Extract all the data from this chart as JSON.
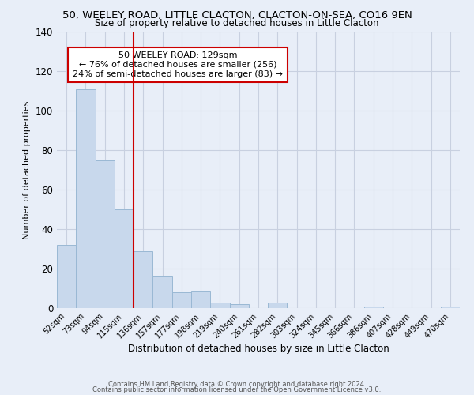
{
  "title": "50, WEELEY ROAD, LITTLE CLACTON, CLACTON-ON-SEA, CO16 9EN",
  "subtitle": "Size of property relative to detached houses in Little Clacton",
  "xlabel": "Distribution of detached houses by size in Little Clacton",
  "ylabel": "Number of detached properties",
  "bar_labels": [
    "52sqm",
    "73sqm",
    "94sqm",
    "115sqm",
    "136sqm",
    "157sqm",
    "177sqm",
    "198sqm",
    "219sqm",
    "240sqm",
    "261sqm",
    "282sqm",
    "303sqm",
    "324sqm",
    "345sqm",
    "366sqm",
    "386sqm",
    "407sqm",
    "428sqm",
    "449sqm",
    "470sqm"
  ],
  "bar_values": [
    32,
    111,
    75,
    50,
    29,
    16,
    8,
    9,
    3,
    2,
    0,
    3,
    0,
    0,
    0,
    0,
    1,
    0,
    0,
    0,
    1
  ],
  "bar_color": "#c8d8ec",
  "bar_edge_color": "#9ab8d4",
  "vline_x": 4,
  "vline_color": "#cc0000",
  "annotation_title": "50 WEELEY ROAD: 129sqm",
  "annotation_line1": "← 76% of detached houses are smaller (256)",
  "annotation_line2": "24% of semi-detached houses are larger (83) →",
  "annotation_box_color": "#ffffff",
  "annotation_box_edge": "#cc0000",
  "ylim": [
    0,
    140
  ],
  "yticks": [
    0,
    20,
    40,
    60,
    80,
    100,
    120,
    140
  ],
  "footer1": "Contains HM Land Registry data © Crown copyright and database right 2024.",
  "footer2": "Contains public sector information licensed under the Open Government Licence v3.0.",
  "bg_color": "#e8eef8",
  "grid_color": "#c8d0e0"
}
